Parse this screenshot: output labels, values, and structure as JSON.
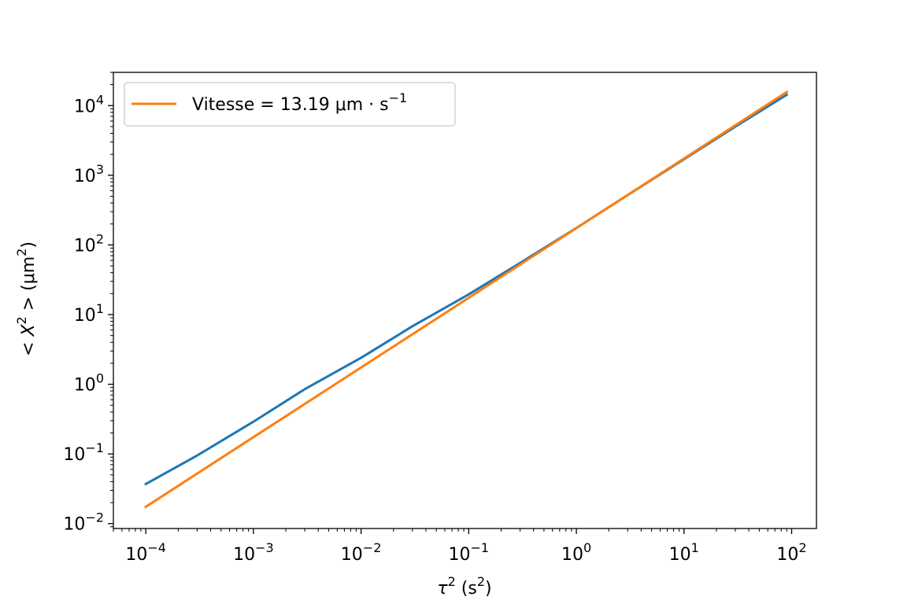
{
  "chart_data": {
    "type": "line",
    "title": "",
    "xscale": "log",
    "yscale": "log",
    "xlim": [
      5e-05,
      170
    ],
    "ylim": [
      0.0085,
      30000
    ],
    "grid": false,
    "x_ticks": [
      0.0001,
      0.001,
      0.01,
      0.1,
      1,
      10,
      100
    ],
    "y_ticks": [
      0.01,
      0.1,
      1,
      10,
      100,
      1000,
      10000
    ],
    "xlabel": {
      "base": "τ",
      "sup": "2",
      "rest": " (s",
      "rest_sup": "2",
      "close": ")"
    },
    "ylabel": {
      "open": "< ",
      "base": "X",
      "sup": "2",
      "mid": " >  (μm",
      "mid_sup": "2",
      "close": ")"
    },
    "legend": {
      "position": "upper left",
      "entries": [
        {
          "series": 1,
          "text": "Vitesse = 13.19 μm · s",
          "sup": "−1"
        }
      ]
    },
    "series": [
      {
        "color": "#1f77b4",
        "x": [
          0.0001,
          0.0003,
          0.001,
          0.003,
          0.01,
          0.03,
          0.1,
          0.3,
          1,
          3,
          10,
          30,
          90
        ],
        "y": [
          0.037,
          0.095,
          0.29,
          0.85,
          2.4,
          6.8,
          19.5,
          55,
          175,
          520,
          1700,
          5000,
          14300
        ]
      },
      {
        "name": "Vitesse = 13.19 μm · s−1",
        "color": "#ff7f0e",
        "x": [
          0.0001,
          90
        ],
        "y": [
          0.0174,
          15660
        ]
      }
    ]
  }
}
